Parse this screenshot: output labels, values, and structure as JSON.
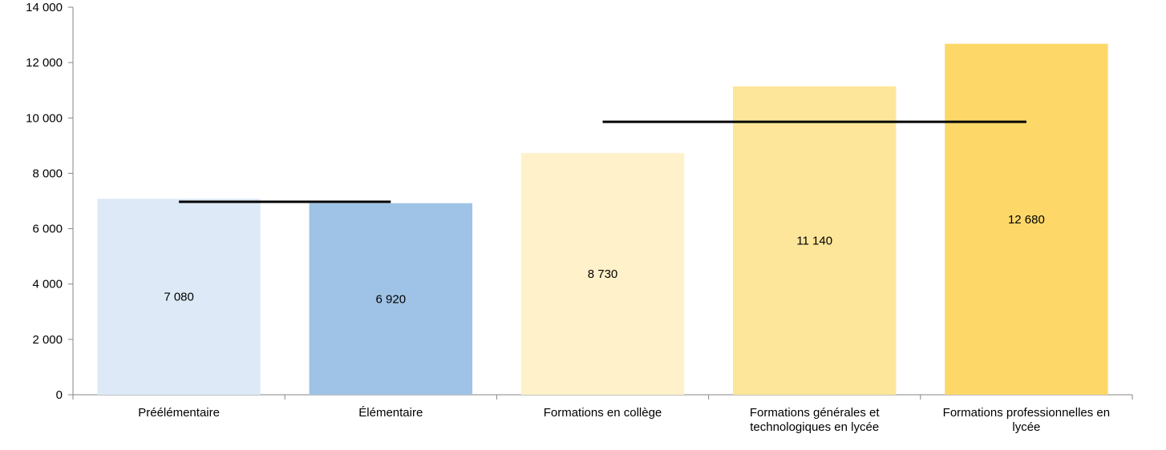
{
  "chart_data": {
    "type": "bar",
    "title": "",
    "xlabel": "",
    "ylabel": "",
    "ylim": [
      0,
      14000
    ],
    "y_ticks": [
      0,
      2000,
      4000,
      6000,
      8000,
      10000,
      12000,
      14000
    ],
    "y_tick_labels": [
      "0",
      "2 000",
      "4 000",
      "6 000",
      "8 000",
      "10 000",
      "12 000",
      "14 000"
    ],
    "grid": false,
    "categories": [
      [
        "Préélémentaire"
      ],
      [
        "Élémentaire"
      ],
      [
        "Formations en collège"
      ],
      [
        "Formations générales et",
        "technologiques en lycée"
      ],
      [
        "Formations professionnelles en",
        "lycée"
      ]
    ],
    "values": [
      7080,
      6920,
      8730,
      11140,
      12680
    ],
    "data_labels": [
      "7 080",
      "6 920",
      "8 730",
      "11 140",
      "12 680"
    ],
    "colors": [
      "#dde9f6",
      "#9fc3e6",
      "#fff1c9",
      "#fde699",
      "#fdd868"
    ],
    "average_lines": [
      {
        "from_category": 0,
        "to_category": 1,
        "value": 6970
      },
      {
        "from_category": 2,
        "to_category": 4,
        "value": 9860
      }
    ],
    "average_line_color": "#000000"
  }
}
